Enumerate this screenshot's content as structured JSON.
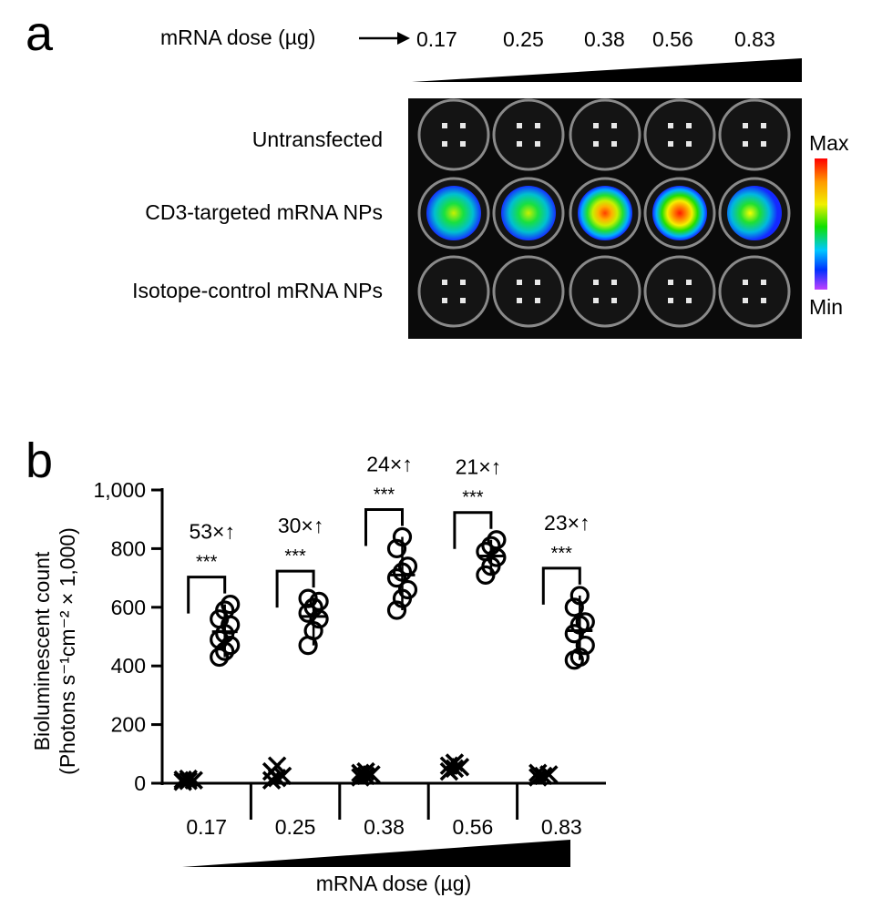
{
  "panel_a": {
    "letter": "a",
    "dose_label": "mRNA dose (µg)",
    "doses": [
      "0.17",
      "0.25",
      "0.38",
      "0.56",
      "0.83"
    ],
    "rows": [
      {
        "label": "Untransfected",
        "intensity": [
          0,
          0,
          0,
          0,
          0
        ]
      },
      {
        "label": "CD3-targeted mRNA NPs",
        "intensity": [
          0.55,
          0.6,
          0.8,
          0.88,
          0.62
        ]
      },
      {
        "label": "Isotope-control mRNA NPs",
        "intensity": [
          0,
          0,
          0,
          0,
          0
        ]
      }
    ],
    "scale_max": "Max",
    "scale_min": "Min"
  },
  "chart_data": {
    "type": "scatter",
    "panel_letter": "b",
    "ylabel_line1": "Bioluminescent count",
    "ylabel_line2": "(Photons s⁻¹cm⁻²  × 1,000)",
    "xlabel": "mRNA dose (µg)",
    "categories": [
      "0.17",
      "0.25",
      "0.38",
      "0.56",
      "0.83"
    ],
    "ylim": [
      0,
      1000
    ],
    "yticks": [
      0,
      200,
      400,
      600,
      800,
      1000
    ],
    "ytick_labels": [
      "0",
      "200",
      "400",
      "600",
      "800",
      "1,000"
    ],
    "series": [
      {
        "marker": "circle",
        "values": [
          [
            430,
            450,
            470,
            490,
            510,
            540,
            560,
            590,
            610
          ],
          [
            470,
            520,
            560,
            580,
            600,
            620,
            630
          ],
          [
            590,
            630,
            660,
            700,
            720,
            740,
            800,
            840
          ],
          [
            710,
            740,
            770,
            790,
            810,
            830
          ],
          [
            420,
            430,
            470,
            510,
            540,
            550,
            600,
            640
          ]
        ]
      },
      {
        "marker": "cross",
        "values": [
          [
            5,
            8,
            10,
            12,
            15
          ],
          [
            10,
            18,
            25,
            40,
            60
          ],
          [
            20,
            25,
            30,
            35,
            40
          ],
          [
            40,
            50,
            55,
            60,
            70
          ],
          [
            20,
            25,
            30,
            35
          ]
        ]
      }
    ],
    "annotations": [
      {
        "fold": "53×↑",
        "sig": "***"
      },
      {
        "fold": "30×↑",
        "sig": "***"
      },
      {
        "fold": "24×↑",
        "sig": "***"
      },
      {
        "fold": "21×↑",
        "sig": "***"
      },
      {
        "fold": "23×↑",
        "sig": "***"
      }
    ]
  }
}
